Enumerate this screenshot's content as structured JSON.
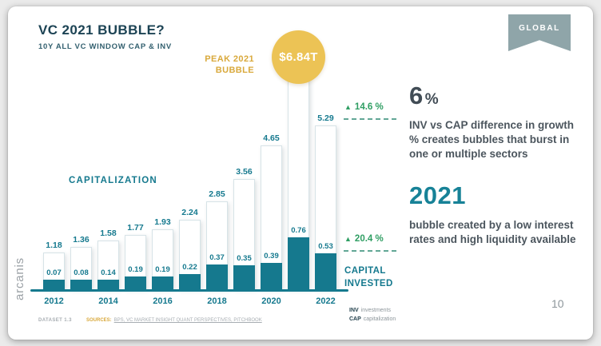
{
  "slide": {
    "title": "VC 2021 BUBBLE?",
    "subtitle": "10Y ALL VC WINDOW CAP & INV",
    "badge": "GLOBAL",
    "logo": "arcanis",
    "page_number": "10"
  },
  "icons": {
    "growth_up": "▲"
  },
  "chart_data": {
    "type": "bar",
    "title": "VC 2021 BUBBLE?",
    "subtitle": "10Y ALL VC WINDOW CAP & INV",
    "unit": "USD trillions",
    "categories": [
      "2012",
      "2013",
      "2014",
      "2015",
      "2016",
      "2017",
      "2018",
      "2019",
      "2020",
      "2021",
      "2022"
    ],
    "series": [
      {
        "name": "CAP capitalization",
        "color": "#ffffff",
        "values": [
          1.18,
          1.36,
          1.58,
          1.77,
          1.93,
          2.24,
          2.85,
          3.56,
          4.65,
          6.84,
          5.29
        ]
      },
      {
        "name": "INV investments",
        "color": "#15798e",
        "values": [
          0.07,
          0.08,
          0.14,
          0.19,
          0.19,
          0.22,
          0.37,
          0.35,
          0.39,
          0.76,
          0.53
        ]
      }
    ],
    "x_tick_labels": [
      "2012",
      "2014",
      "2016",
      "2018",
      "2020",
      "2022"
    ],
    "ylim": [
      0,
      7
    ],
    "grid": false,
    "legend_position": "bottom-right",
    "peak_index": 9,
    "annotations": {
      "peak_label": "PEAK 2021 BUBBLE",
      "peak_value": "$6.84T",
      "cap_growth": "14.6 %",
      "inv_growth": "20.4 %",
      "cap_series_label": "CAPITALIZATION",
      "inv_series_label": "CAPITAL INVESTED"
    },
    "colors": {
      "teal": "#15798e",
      "gold_circle": "#ecc355",
      "gold_text": "#d9a93c",
      "green": "#2f9e63",
      "title": "#1c4354"
    }
  },
  "right_panel": {
    "stat1_value": "6",
    "stat1_unit": "%",
    "stat1_text": "INV vs CAP difference in growth % creates bubbles that burst in one or multiple sectors",
    "stat2_value": "2021",
    "stat2_text": "bubble created by a low interest rates and high liquidity available"
  },
  "footer": {
    "dataset": "DATASET 1.3",
    "sources_label": "SOURCES:",
    "sources_text": "BPS, VC MARKET INSIGHT QUANT PERSPECTIVES, PITCHBOOK",
    "legend": [
      {
        "abbr": "INV",
        "label": "investments"
      },
      {
        "abbr": "CAP",
        "label": "capitalization"
      }
    ]
  }
}
